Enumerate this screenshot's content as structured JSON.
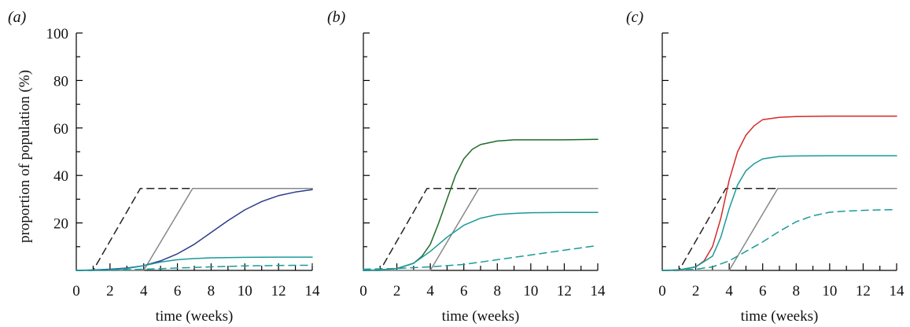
{
  "chart_data": [
    {
      "type": "line",
      "panel_label": "(a)",
      "xlabel": "time (weeks)",
      "ylabel": "proportion of population (%)",
      "xlim": [
        0,
        14
      ],
      "ylim": [
        0,
        100
      ],
      "xticks": [
        0,
        2,
        4,
        6,
        8,
        10,
        12,
        14
      ],
      "yticks": [
        20,
        40,
        60,
        80,
        100
      ],
      "show_yticklabels": true,
      "series": [
        {
          "color": "#222222",
          "dash": "9,6",
          "x": [
            0,
            1,
            3.8,
            14
          ],
          "y": [
            0,
            0,
            34.5,
            34.5
          ]
        },
        {
          "color": "#888888",
          "dash": "",
          "x": [
            0,
            4,
            6.9,
            14
          ],
          "y": [
            0,
            0,
            34.5,
            34.5
          ]
        },
        {
          "color": "#2e3a8c",
          "dash": "",
          "x": [
            0,
            1,
            2,
            3,
            4,
            5,
            6,
            7,
            8,
            9,
            10,
            11,
            12,
            13,
            14
          ],
          "y": [
            0,
            0.2,
            0.5,
            1,
            2,
            4,
            7,
            11,
            16,
            21,
            25.5,
            29,
            31.5,
            33,
            34
          ]
        },
        {
          "color": "#1a9a9a",
          "dash": "",
          "x": [
            0,
            2,
            3,
            4,
            5,
            6,
            7,
            8,
            10,
            12,
            14
          ],
          "y": [
            0,
            0.3,
            0.8,
            2,
            3.5,
            4.5,
            5,
            5.3,
            5.5,
            5.6,
            5.6
          ]
        },
        {
          "color": "#1a9a9a",
          "dash": "9,6",
          "x": [
            0,
            2,
            4,
            6,
            8,
            10,
            12,
            14
          ],
          "y": [
            0,
            0.1,
            0.5,
            1,
            1.5,
            1.9,
            2.1,
            2.2
          ]
        }
      ]
    },
    {
      "type": "line",
      "panel_label": "(b)",
      "xlabel": "time (weeks)",
      "xlim": [
        0,
        14
      ],
      "ylim": [
        0,
        100
      ],
      "xticks": [
        0,
        2,
        4,
        6,
        8,
        10,
        12,
        14
      ],
      "yticks": [
        20,
        40,
        60,
        80,
        100
      ],
      "show_yticklabels": false,
      "series": [
        {
          "color": "#222222",
          "dash": "9,6",
          "x": [
            0,
            1,
            3.8,
            14
          ],
          "y": [
            0,
            0,
            34.5,
            34.5
          ]
        },
        {
          "color": "#888888",
          "dash": "",
          "x": [
            0,
            4,
            6.9,
            14
          ],
          "y": [
            0,
            0,
            34.5,
            34.5
          ]
        },
        {
          "color": "#1e6b2a",
          "dash": "",
          "x": [
            0,
            1,
            2,
            3,
            3.5,
            4,
            4.5,
            5,
            5.5,
            6,
            6.5,
            7,
            8,
            9,
            10,
            12,
            14
          ],
          "y": [
            0,
            0.2,
            0.8,
            3,
            6,
            11,
            20,
            30,
            40,
            47,
            51,
            53,
            54.5,
            55,
            55,
            55,
            55.2
          ]
        },
        {
          "color": "#1a9a9a",
          "dash": "",
          "x": [
            0,
            1,
            2,
            3,
            4,
            5,
            6,
            7,
            8,
            9,
            10,
            12,
            14
          ],
          "y": [
            0,
            0.2,
            0.8,
            3,
            8,
            14,
            19,
            22,
            23.5,
            24,
            24.3,
            24.4,
            24.4
          ]
        },
        {
          "color": "#1a9a9a",
          "dash": "9,6",
          "x": [
            0,
            2,
            4,
            6,
            8,
            10,
            12,
            14
          ],
          "y": [
            0.5,
            0.8,
            1.5,
            2.5,
            4.5,
            6.5,
            8.5,
            10.5
          ]
        }
      ]
    },
    {
      "type": "line",
      "panel_label": "(c)",
      "xlabel": "time (weeks)",
      "xlim": [
        0,
        14
      ],
      "ylim": [
        0,
        100
      ],
      "xticks": [
        0,
        2,
        4,
        6,
        8,
        10,
        12,
        14
      ],
      "yticks": [
        20,
        40,
        60,
        80,
        100
      ],
      "show_yticklabels": false,
      "series": [
        {
          "color": "#222222",
          "dash": "9,6",
          "x": [
            0,
            1,
            3.8,
            14
          ],
          "y": [
            0,
            0,
            34.5,
            34.5
          ]
        },
        {
          "color": "#888888",
          "dash": "",
          "x": [
            0,
            4,
            6.9,
            14
          ],
          "y": [
            0,
            0,
            34.5,
            34.5
          ]
        },
        {
          "color": "#d42a2a",
          "dash": "",
          "x": [
            0,
            1,
            2,
            2.5,
            3,
            3.5,
            4,
            4.5,
            5,
            5.5,
            6,
            7,
            8,
            10,
            12,
            14
          ],
          "y": [
            0,
            0.2,
            1.5,
            4,
            10,
            22,
            38,
            50,
            57,
            61,
            63.5,
            64.5,
            64.8,
            65,
            65,
            65
          ]
        },
        {
          "color": "#1a9a9a",
          "dash": "",
          "x": [
            0,
            1,
            2,
            3,
            3.5,
            4,
            4.5,
            5,
            5.5,
            6,
            7,
            8,
            10,
            12,
            14
          ],
          "y": [
            0,
            0.2,
            1.5,
            6,
            14,
            26,
            36,
            42,
            45,
            47,
            48,
            48.2,
            48.3,
            48.3,
            48.3
          ]
        },
        {
          "color": "#1a9a9a",
          "dash": "9,6",
          "x": [
            0,
            2,
            3,
            4,
            5,
            6,
            7,
            8,
            9,
            10,
            11,
            12,
            13,
            14
          ],
          "y": [
            0,
            0.5,
            1.5,
            4,
            8,
            12,
            16.5,
            20.5,
            23,
            24.5,
            25,
            25.3,
            25.5,
            25.6
          ]
        }
      ]
    }
  ]
}
